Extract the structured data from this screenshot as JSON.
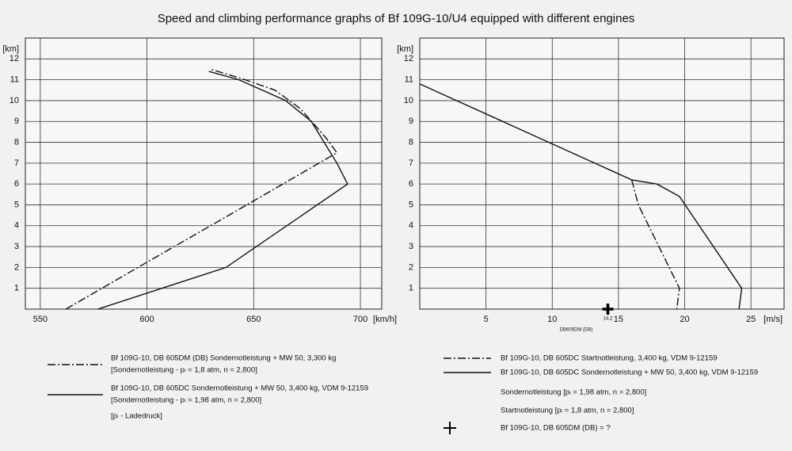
{
  "title": "Speed and climbing performance graphs of Bf 109G-10/U4 equipped with different engines",
  "chart_data": [
    {
      "type": "line",
      "x_label": "[km/h]",
      "y_label": "[km]",
      "xlim": [
        543,
        710
      ],
      "xticks": [
        550,
        600,
        650,
        700
      ],
      "ylim": [
        0,
        13
      ],
      "yticks": [
        1,
        2,
        3,
        4,
        5,
        6,
        7,
        8,
        9,
        10,
        11,
        12
      ],
      "grid": true,
      "series": [
        {
          "name": "Bf 109G-10, DB 605DM (DB) Sondernotleistung + MW 50, 3,300 kg",
          "note": "[Sondernotleistung - pₗ = 1,8 atm, n = 2,800]",
          "color": "#111111",
          "style": "dash-dot",
          "x": [
            562,
            600,
            640,
            689,
            684,
            672,
            660,
            646,
            630
          ],
          "values": [
            0,
            2.25,
            4.6,
            7.5,
            8.2,
            9.6,
            10.5,
            11,
            11.5
          ]
        },
        {
          "name": "Bf 109G-10, DB 605DC Sondernotleistung + MW 50, 3,400 kg, VDM 9-12159",
          "note": "[Sondernotleistung - pₗ = 1,98 atm, n = 2,800]",
          "color": "#111111",
          "style": "solid",
          "x": [
            577,
            637,
            694,
            689,
            683,
            677,
            665,
            643,
            629
          ],
          "values": [
            0,
            2,
            6,
            7,
            8,
            9,
            10,
            11,
            11.4
          ]
        }
      ],
      "notes": [
        "[pₗ - Ladedruck]"
      ]
    },
    {
      "type": "line",
      "x_label": "[m/s]",
      "y_label": "[km]",
      "xlim": [
        0,
        27.5
      ],
      "xticks": [
        5,
        10,
        15,
        20,
        25
      ],
      "ylim": [
        0,
        13
      ],
      "yticks": [
        1,
        2,
        3,
        4,
        5,
        6,
        7,
        8,
        9,
        10,
        11,
        12
      ],
      "grid": true,
      "series": [
        {
          "name": "Bf 109G-10, DB 605DC Startnotleistung, 3,400 kg, VDM 9-12159",
          "color": "#111111",
          "style": "dash-dot",
          "x": [
            16.0,
            16.5,
            19.6,
            19.4
          ],
          "values": [
            6.2,
            5,
            1,
            0
          ]
        },
        {
          "name": "Bf 109G-10, DB 605DC Sondernotleistung + MW 50, 3,400 kg, VDM 9-12159",
          "color": "#111111",
          "style": "solid",
          "x": [
            0,
            16.0,
            17.9,
            19.6,
            24.3,
            24.1
          ],
          "values": [
            10.8,
            6.2,
            6.0,
            5.4,
            1.0,
            0
          ]
        },
        {
          "name": "Bf 109G-10, DB 605DM (DB) = ?",
          "color": "#000000",
          "style": "plus",
          "x": [
            14.2
          ],
          "values": [
            0
          ],
          "annotation": "DB605DM (DB)"
        }
      ],
      "notes": [
        "Sondernotleistung  [pₗ = 1,98 atm, n = 2,800]",
        "Startnotleistung  [pₗ = 1,8 atm, n = 2,800]"
      ]
    }
  ]
}
